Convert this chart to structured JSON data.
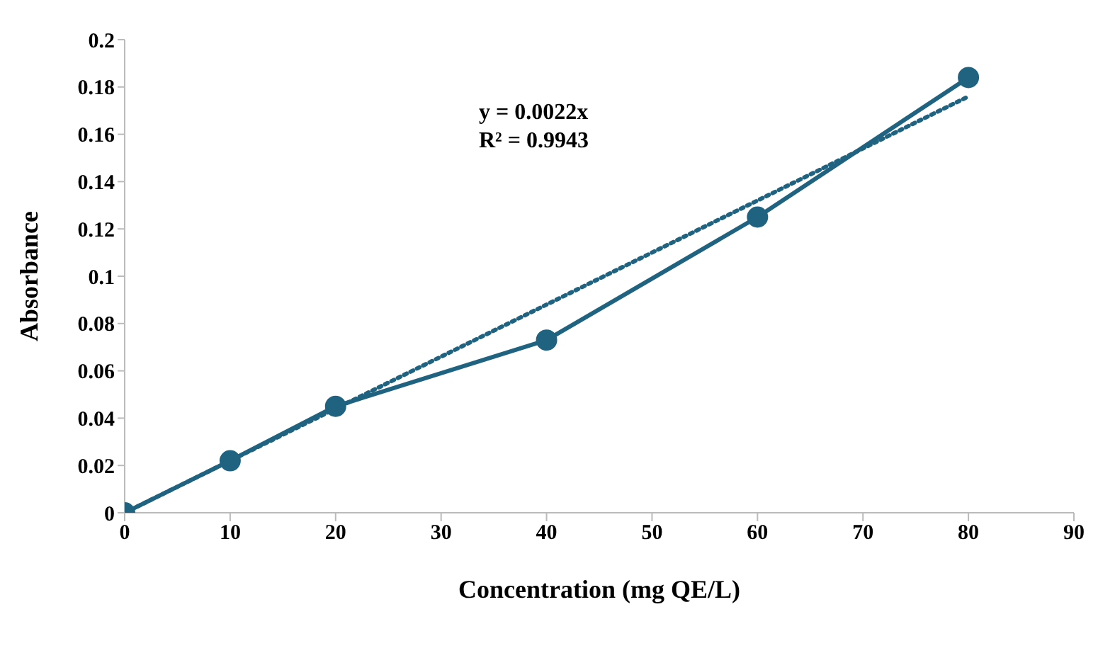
{
  "chart_data": {
    "type": "line",
    "xlabel": "Concentration (mg QE/L)",
    "ylabel": "Absorbance",
    "xlim": [
      0,
      90
    ],
    "xticks": [
      0,
      10,
      20,
      30,
      40,
      50,
      60,
      70,
      80,
      90
    ],
    "ylim": [
      0,
      0.2
    ],
    "yticks": [
      0,
      0.02,
      0.04,
      0.06,
      0.08,
      0.1,
      0.12,
      0.14,
      0.16,
      0.18,
      0.2
    ],
    "grid": false,
    "legend": false,
    "series": [
      {
        "type": "line",
        "color": "#1f6380",
        "marker": "circle",
        "line_style": "solid",
        "x": [
          0,
          10,
          20,
          40,
          60,
          80
        ],
        "values": [
          0,
          0.022,
          0.045,
          0.073,
          0.125,
          0.184
        ]
      },
      {
        "type": "line",
        "color": "#1f6380",
        "marker": "none",
        "line_style": "dotted",
        "x": [
          0,
          80
        ],
        "values": [
          0,
          0.176
        ]
      }
    ],
    "annotations": [
      "y = 0.0022x",
      "R² = 0.9943"
    ]
  }
}
